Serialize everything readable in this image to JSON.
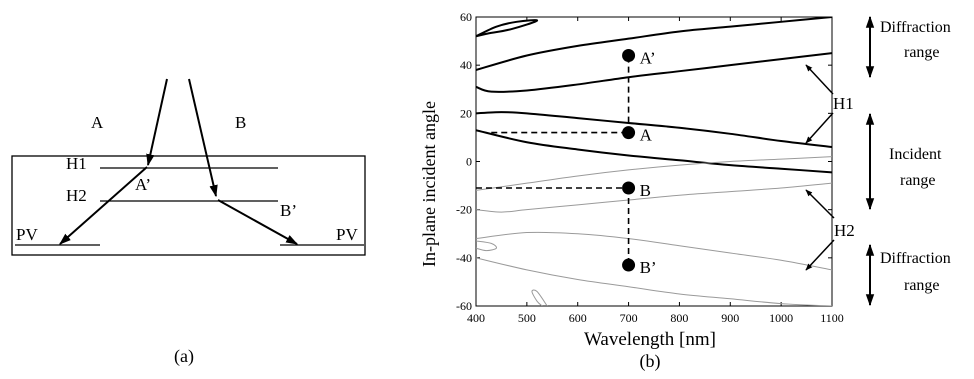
{
  "panel_a": {
    "caption": "(a)",
    "labels": {
      "ray_a": "A",
      "ray_b": "B",
      "hologram_1": "H1",
      "hologram_2": "H2",
      "diffracted_a": "A’",
      "diffracted_b": "B’",
      "pv_left": "PV",
      "pv_right": "PV"
    }
  },
  "panel_b": {
    "caption": "(b)",
    "annotations": {
      "diffraction_top": [
        "Diffraction",
        "range"
      ],
      "incident": [
        "Incident",
        "range"
      ],
      "diffraction_bottom": [
        "Diffraction",
        "range"
      ],
      "h1": "H1",
      "h2": "H2"
    }
  },
  "chart_data": {
    "type": "line",
    "xlabel": "Wavelength [nm]",
    "ylabel": "In-plane incident angle",
    "xlim": [
      400,
      1100
    ],
    "ylim": [
      -60,
      60
    ],
    "xticks": [
      400,
      500,
      600,
      700,
      800,
      900,
      1000,
      1100
    ],
    "yticks": [
      60,
      40,
      20,
      0,
      -20,
      -40,
      -60
    ],
    "grid": false,
    "series": [
      {
        "style": "thick",
        "points": [
          [
            400,
            38
          ],
          [
            500,
            44
          ],
          [
            600,
            48
          ],
          [
            700,
            51
          ],
          [
            800,
            54
          ],
          [
            900,
            56
          ],
          [
            1000,
            58
          ],
          [
            1100,
            60
          ]
        ]
      },
      {
        "style": "thick",
        "points": [
          [
            400,
            31
          ],
          [
            430,
            29
          ],
          [
            500,
            29.5
          ],
          [
            600,
            32
          ],
          [
            700,
            35
          ],
          [
            800,
            37.5
          ],
          [
            900,
            40
          ],
          [
            1000,
            42.5
          ],
          [
            1100,
            45
          ]
        ]
      },
      {
        "style": "thick",
        "points": [
          [
            400,
            20
          ],
          [
            450,
            20.5
          ],
          [
            500,
            20
          ],
          [
            600,
            18
          ],
          [
            700,
            16
          ],
          [
            800,
            14
          ],
          [
            900,
            11.5
          ],
          [
            1000,
            8.5
          ],
          [
            1100,
            6
          ]
        ]
      },
      {
        "style": "thick",
        "points": [
          [
            400,
            13
          ],
          [
            500,
            8
          ],
          [
            600,
            5
          ],
          [
            700,
            2.5
          ],
          [
            800,
            0.5
          ],
          [
            900,
            -1.5
          ],
          [
            1000,
            -3
          ],
          [
            1100,
            -4.5
          ]
        ]
      },
      {
        "style": "thick",
        "points": [
          [
            400,
            52
          ],
          [
            440,
            56
          ],
          [
            480,
            58
          ],
          [
            520,
            58.5
          ],
          [
            470,
            55
          ],
          [
            420,
            53
          ],
          [
            400,
            52
          ]
        ]
      },
      {
        "style": "thin",
        "points": [
          [
            400,
            -12
          ],
          [
            500,
            -9
          ],
          [
            600,
            -6
          ],
          [
            700,
            -3.5
          ],
          [
            800,
            -1.5
          ],
          [
            900,
            0
          ],
          [
            1000,
            1
          ],
          [
            1100,
            2
          ]
        ]
      },
      {
        "style": "thin",
        "points": [
          [
            400,
            -20
          ],
          [
            450,
            -21
          ],
          [
            500,
            -20
          ],
          [
            600,
            -18
          ],
          [
            700,
            -16
          ],
          [
            800,
            -14
          ],
          [
            900,
            -12.5
          ],
          [
            1000,
            -11
          ],
          [
            1100,
            -9
          ]
        ]
      },
      {
        "style": "thin",
        "points": [
          [
            400,
            -32
          ],
          [
            500,
            -29.5
          ],
          [
            600,
            -30
          ],
          [
            700,
            -32
          ],
          [
            800,
            -35
          ],
          [
            900,
            -38
          ],
          [
            1000,
            -41
          ],
          [
            1100,
            -45
          ]
        ]
      },
      {
        "style": "thin",
        "points": [
          [
            400,
            -40
          ],
          [
            500,
            -45
          ],
          [
            600,
            -49
          ],
          [
            700,
            -52
          ],
          [
            800,
            -55
          ],
          [
            900,
            -57
          ],
          [
            1000,
            -59
          ],
          [
            1100,
            -60
          ]
        ]
      },
      {
        "style": "thin",
        "points": [
          [
            400,
            -33
          ],
          [
            430,
            -34
          ],
          [
            440,
            -36
          ],
          [
            420,
            -37
          ],
          [
            400,
            -36
          ]
        ]
      },
      {
        "style": "thin",
        "points": [
          [
            540,
            -60
          ],
          [
            520,
            -54
          ],
          [
            510,
            -54
          ],
          [
            520,
            -58
          ],
          [
            530,
            -60
          ]
        ]
      }
    ],
    "points": [
      {
        "label": "A’",
        "x": 700,
        "y": 44
      },
      {
        "label": "A",
        "x": 700,
        "y": 12
      },
      {
        "label": "B",
        "x": 700,
        "y": -11
      },
      {
        "label": "B’",
        "x": 700,
        "y": -43
      }
    ]
  }
}
